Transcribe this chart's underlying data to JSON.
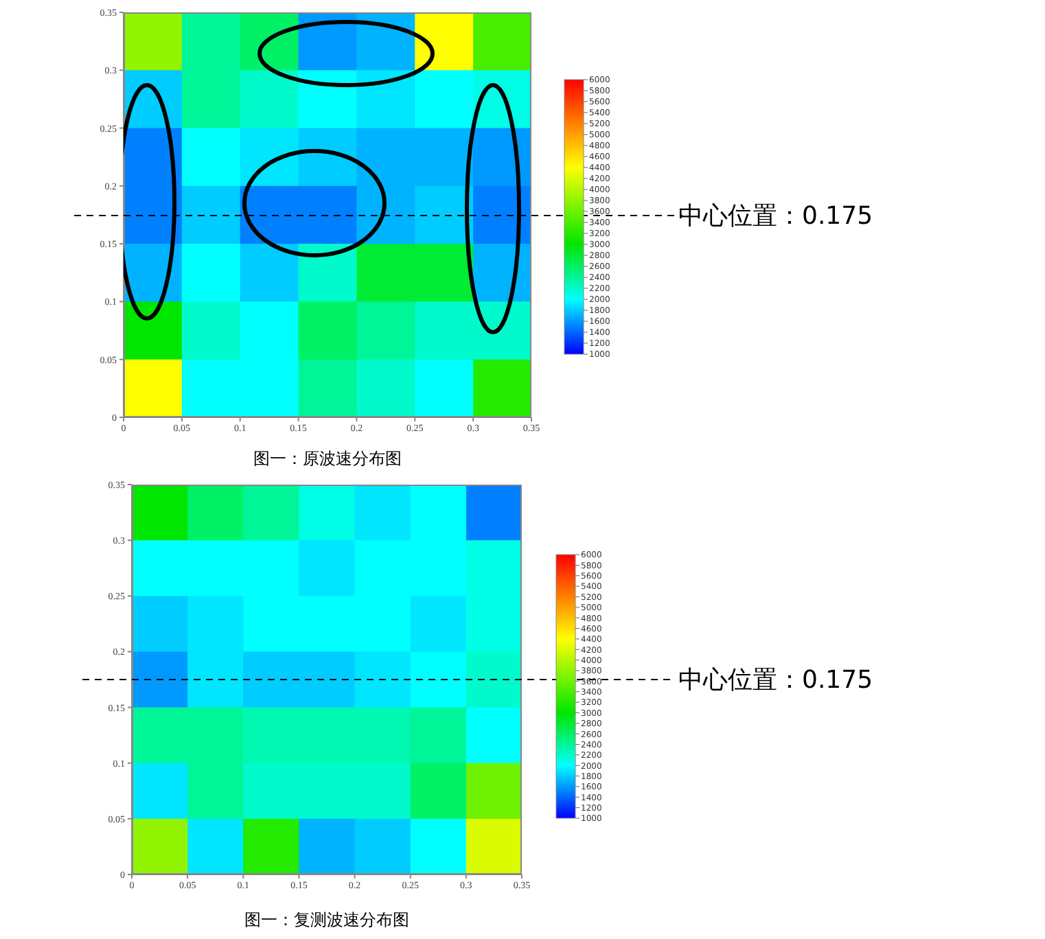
{
  "chart_data": [
    {
      "type": "heatmap",
      "title": "图一：原波速分布图",
      "xlim": [
        0,
        0.35
      ],
      "xticks": [
        0,
        0.05,
        0.1,
        0.15,
        0.2,
        0.25,
        0.3,
        0.35
      ],
      "ylim": [
        0,
        0.35
      ],
      "yticks": [
        0,
        0.05,
        0.1,
        0.15,
        0.2,
        0.25,
        0.3,
        0.35
      ],
      "cells": [
        [
          3800,
          2400,
          2600,
          1600,
          1700,
          4400,
          3400
        ],
        [
          1800,
          2400,
          2200,
          2000,
          1900,
          2000,
          2100
        ],
        [
          1500,
          2000,
          1900,
          1800,
          1700,
          1700,
          1600
        ],
        [
          1500,
          1800,
          1500,
          1500,
          1700,
          1800,
          1500
        ],
        [
          1700,
          2000,
          1800,
          2200,
          2800,
          2800,
          1700
        ],
        [
          3000,
          2200,
          2000,
          2600,
          2400,
          2200,
          2200
        ],
        [
          4400,
          2000,
          2000,
          2400,
          2200,
          2000,
          3200
        ]
      ],
      "clim": [
        1000,
        6000
      ],
      "cticks": [
        1000,
        1200,
        1400,
        1600,
        1800,
        2000,
        2200,
        2400,
        2600,
        2800,
        3000,
        3200,
        3400,
        3600,
        3800,
        4000,
        4200,
        4400,
        4600,
        4800,
        5000,
        5200,
        5400,
        5600,
        5800,
        6000
      ],
      "ref_lines": [
        {
          "axis": "y",
          "value": 0.175,
          "label": "中心位置：0.175",
          "line_style": "dashed"
        }
      ]
    },
    {
      "type": "heatmap",
      "title": "图一：复测波速分布图",
      "xlim": [
        0,
        0.35
      ],
      "xticks": [
        0,
        0.05,
        0.1,
        0.15,
        0.2,
        0.25,
        0.3,
        0.35
      ],
      "ylim": [
        0,
        0.35
      ],
      "yticks": [
        0,
        0.05,
        0.1,
        0.15,
        0.2,
        0.25,
        0.3,
        0.35
      ],
      "cells": [
        [
          3000,
          2600,
          2400,
          2100,
          1900,
          2000,
          1500
        ],
        [
          2000,
          2000,
          2000,
          1900,
          2000,
          2000,
          2100
        ],
        [
          1800,
          1900,
          2000,
          2000,
          2000,
          1900,
          2100
        ],
        [
          1600,
          1900,
          1800,
          1800,
          1900,
          2000,
          2200
        ],
        [
          2400,
          2400,
          2300,
          2300,
          2300,
          2400,
          2000
        ],
        [
          1900,
          2400,
          2200,
          2200,
          2200,
          2600,
          3600
        ],
        [
          3800,
          1900,
          3200,
          1700,
          1800,
          2000,
          4200
        ]
      ],
      "clim": [
        1000,
        6000
      ],
      "cticks": [
        1000,
        1200,
        1400,
        1600,
        1800,
        2000,
        2200,
        2400,
        2600,
        2800,
        3000,
        3200,
        3400,
        3600,
        3800,
        4000,
        4200,
        4400,
        4600,
        4800,
        5000,
        5200,
        5400,
        5600,
        5800,
        6000
      ],
      "ref_lines": [
        {
          "axis": "y",
          "value": 0.175,
          "label": "中心位置：0.175",
          "line_style": "dashed"
        }
      ]
    }
  ]
}
